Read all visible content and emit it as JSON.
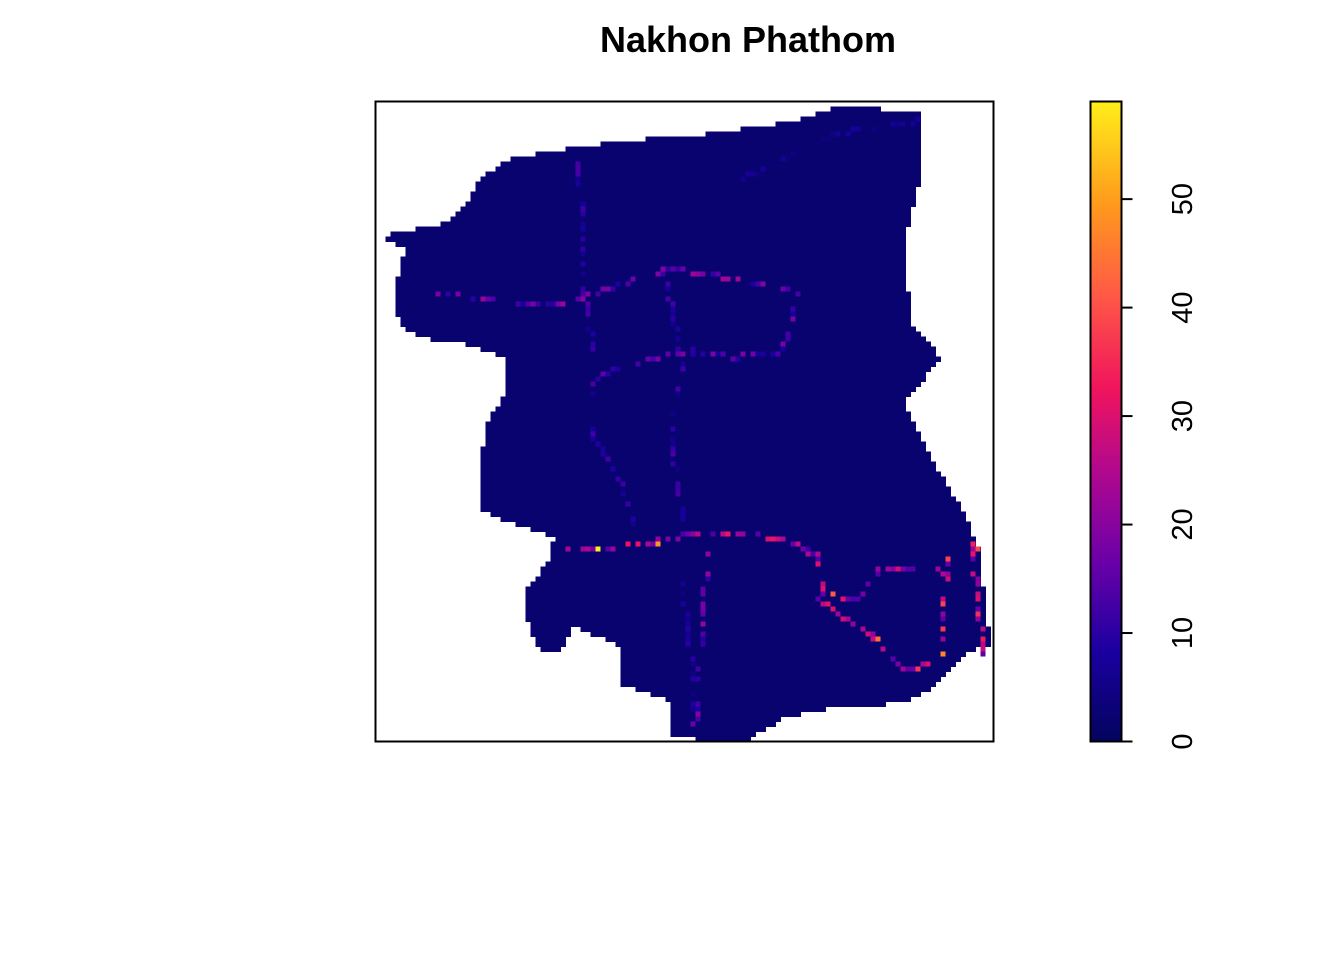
{
  "chart_data": {
    "type": "heatmap",
    "title": "Nakhon Phathom",
    "xlabel": "",
    "ylabel": "",
    "axes_shown": false,
    "legend": {
      "position": "right",
      "range": [
        0,
        59
      ],
      "ticks": [
        0,
        10,
        20,
        30,
        40,
        50
      ],
      "tick_labels": [
        "0",
        "10",
        "20",
        "30",
        "40",
        "50"
      ],
      "colors": [
        "#03045E",
        "#1A00A0",
        "#6A00A8",
        "#B0088F",
        "#F0145E",
        "#FF5A45",
        "#FF9A1C",
        "#FFEE1A"
      ]
    },
    "background_value": 2,
    "roads": [
      {
        "id": "main-east-west",
        "peak": 34,
        "points": [
          [
            0.31,
            0.7
          ],
          [
            0.38,
            0.7
          ],
          [
            0.45,
            0.688
          ],
          [
            0.52,
            0.675
          ],
          [
            0.6,
            0.675
          ],
          [
            0.68,
            0.69
          ],
          [
            0.72,
            0.71
          ],
          [
            0.73,
            0.77
          ]
        ]
      },
      {
        "id": "south-east-branch",
        "peak": 36,
        "points": [
          [
            0.73,
            0.77
          ],
          [
            0.78,
            0.78
          ],
          [
            0.82,
            0.73
          ],
          [
            0.93,
            0.735
          ]
        ]
      },
      {
        "id": "south-east-diagonal",
        "peak": 34,
        "points": [
          [
            0.72,
            0.78
          ],
          [
            0.8,
            0.83
          ],
          [
            0.86,
            0.89
          ],
          [
            0.9,
            0.88
          ]
        ]
      },
      {
        "id": "east-vertical-a",
        "peak": 42,
        "points": [
          [
            0.93,
            0.7
          ],
          [
            0.92,
            0.87
          ]
        ]
      },
      {
        "id": "east-vertical-b",
        "peak": 38,
        "points": [
          [
            0.97,
            0.69
          ],
          [
            0.99,
            0.86
          ]
        ]
      },
      {
        "id": "west-vertical",
        "peak": 14,
        "points": [
          [
            0.33,
            0.09
          ],
          [
            0.34,
            0.3
          ],
          [
            0.36,
            0.42
          ],
          [
            0.35,
            0.52
          ],
          [
            0.4,
            0.6
          ],
          [
            0.42,
            0.66
          ]
        ]
      },
      {
        "id": "center-vertical",
        "peak": 14,
        "points": [
          [
            0.47,
            0.26
          ],
          [
            0.5,
            0.42
          ],
          [
            0.48,
            0.52
          ],
          [
            0.5,
            0.65
          ]
        ]
      },
      {
        "id": "south-vertical",
        "peak": 22,
        "points": [
          [
            0.54,
            0.7
          ],
          [
            0.53,
            0.85
          ],
          [
            0.52,
            0.97
          ]
        ]
      },
      {
        "id": "south-vertical-2",
        "peak": 10,
        "points": [
          [
            0.5,
            0.75
          ],
          [
            0.52,
            0.95
          ]
        ]
      },
      {
        "id": "north-road",
        "peak": 24,
        "points": [
          [
            0.1,
            0.3
          ],
          [
            0.3,
            0.32
          ],
          [
            0.48,
            0.26
          ],
          [
            0.6,
            0.28
          ],
          [
            0.69,
            0.3
          ]
        ]
      },
      {
        "id": "mid-road",
        "peak": 20,
        "points": [
          [
            0.36,
            0.43
          ],
          [
            0.45,
            0.4
          ],
          [
            0.52,
            0.39
          ],
          [
            0.58,
            0.4
          ],
          [
            0.66,
            0.39
          ],
          [
            0.69,
            0.3
          ]
        ]
      },
      {
        "id": "north-east-road",
        "peak": 8,
        "points": [
          [
            0.6,
            0.12
          ],
          [
            0.75,
            0.05
          ],
          [
            0.89,
            0.03
          ]
        ]
      }
    ],
    "hotspots": [
      {
        "x": 0.36,
        "y": 0.7,
        "v": 59
      },
      {
        "x": 0.46,
        "y": 0.688,
        "v": 50
      },
      {
        "x": 0.92,
        "y": 0.86,
        "v": 48
      },
      {
        "x": 0.82,
        "y": 0.84,
        "v": 45
      },
      {
        "x": 0.74,
        "y": 0.77,
        "v": 42
      },
      {
        "x": 0.98,
        "y": 0.7,
        "v": 40
      },
      {
        "x": 0.88,
        "y": 0.89,
        "v": 38
      }
    ]
  }
}
